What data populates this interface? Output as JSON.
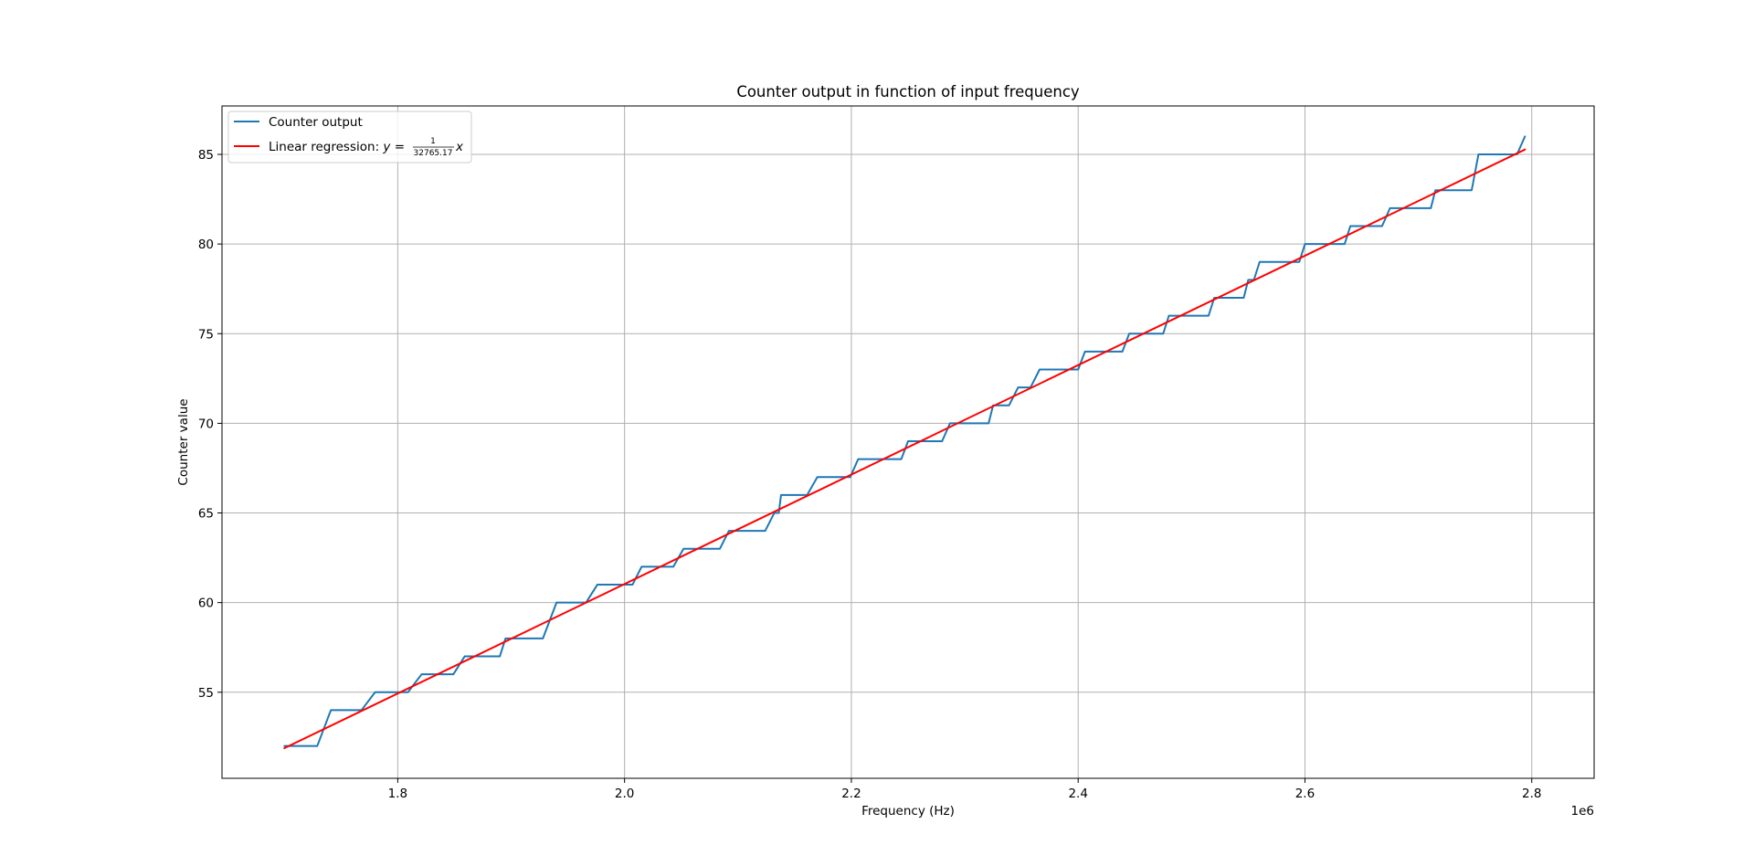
{
  "chart_data": {
    "type": "line",
    "title": "Counter output in function of input frequency",
    "xlabel": "Frequency (Hz)",
    "ylabel": "Counter value",
    "x_offset_label": "1e6",
    "xlim": [
      1.645,
      2.855
    ],
    "ylim": [
      50.2,
      87.7
    ],
    "x_scale": 1000000,
    "xticks": [
      1.8,
      2.0,
      2.2,
      2.4,
      2.6,
      2.8
    ],
    "xtick_labels": [
      "1.8",
      "2.0",
      "2.2",
      "2.4",
      "2.6",
      "2.8"
    ],
    "yticks": [
      55,
      60,
      65,
      70,
      75,
      80,
      85
    ],
    "ytick_labels": [
      "55",
      "60",
      "65",
      "70",
      "75",
      "80",
      "85"
    ],
    "grid": true,
    "legend_position": "upper-left",
    "series": [
      {
        "name": "Counter output",
        "color": "#1f77b4",
        "style": "step",
        "x": [
          1.7,
          1.729,
          1.741,
          1.768,
          1.78,
          1.809,
          1.821,
          1.849,
          1.859,
          1.89,
          1.895,
          1.928,
          1.94,
          1.966,
          1.976,
          2.007,
          2.015,
          2.043,
          2.052,
          2.084,
          2.092,
          2.124,
          2.132,
          2.136,
          2.138,
          2.161,
          2.17,
          2.199,
          2.206,
          2.244,
          2.25,
          2.28,
          2.287,
          2.321,
          2.325,
          2.339,
          2.347,
          2.358,
          2.366,
          2.4,
          2.406,
          2.439,
          2.445,
          2.475,
          2.48,
          2.515,
          2.52,
          2.546,
          2.55,
          2.555,
          2.56,
          2.595,
          2.6,
          2.635,
          2.64,
          2.668,
          2.675,
          2.711,
          2.715,
          2.747,
          2.753,
          2.787,
          2.794
        ],
        "values": [
          52,
          52,
          54,
          54,
          55,
          55,
          56,
          56,
          57,
          57,
          58,
          58,
          60,
          60,
          61,
          61,
          62,
          62,
          63,
          63,
          64,
          64,
          65,
          65,
          66,
          66,
          67,
          67,
          68,
          68,
          69,
          69,
          70,
          70,
          71,
          71,
          72,
          72,
          73,
          73,
          74,
          74,
          75,
          75,
          76,
          76,
          77,
          77,
          78,
          78,
          79,
          79,
          80,
          80,
          81,
          81,
          82,
          82,
          83,
          83,
          85,
          85,
          86
        ]
      },
      {
        "name": "Linear regression: ",
        "equation_lhs": "y = ",
        "fraction_numerator": "1",
        "fraction_denominator": "32765.17",
        "equation_rhs": "x",
        "color": "#ff0000",
        "style": "line",
        "x": [
          1.7,
          2.794
        ],
        "values": [
          51.88,
          85.27
        ]
      }
    ]
  }
}
